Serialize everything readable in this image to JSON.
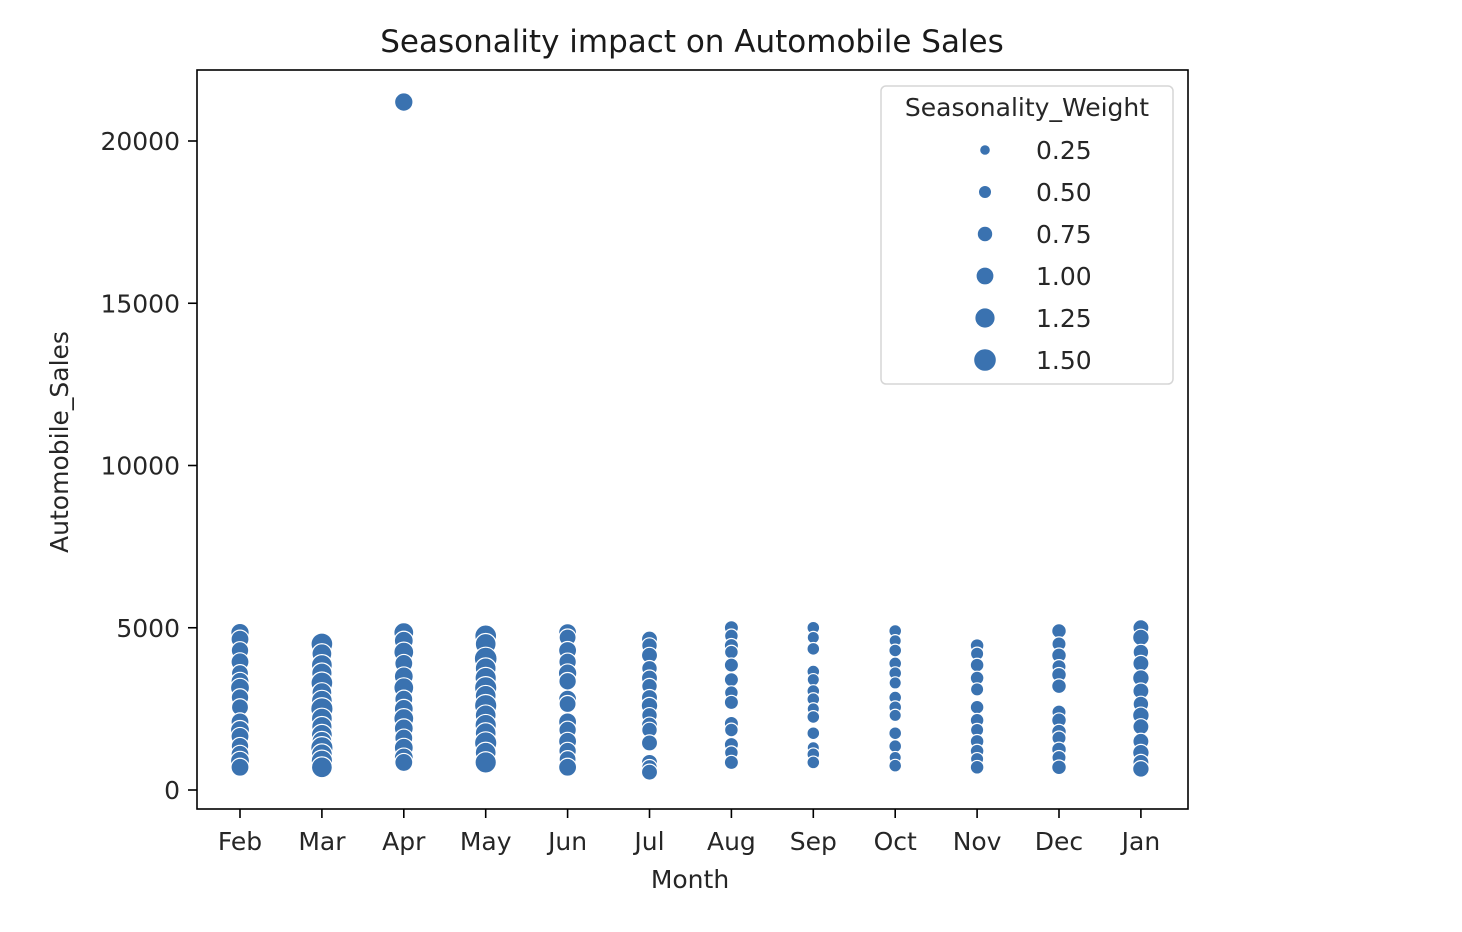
{
  "chart_data": {
    "type": "scatter",
    "title": "Seasonality impact on Automobile Sales",
    "xlabel": "Month",
    "ylabel": "Automobile_Sales",
    "categories": [
      "Feb",
      "Mar",
      "Apr",
      "May",
      "Jun",
      "Jul",
      "Aug",
      "Sep",
      "Oct",
      "Nov",
      "Dec",
      "Jan"
    ],
    "ylim": [
      -600,
      22000
    ],
    "yticks": [
      0,
      5000,
      10000,
      15000,
      20000
    ],
    "grid": false,
    "point_color": "#3a72b0",
    "size_variable": "Seasonality_Weight",
    "legend": {
      "title": "Seasonality_Weight",
      "placement": "top-right",
      "entries": [
        {
          "label": "0.25",
          "value": 0.25
        },
        {
          "label": "0.50",
          "value": 0.5
        },
        {
          "label": "0.75",
          "value": 0.75
        },
        {
          "label": "1.00",
          "value": 1.0
        },
        {
          "label": "1.25",
          "value": 1.25
        },
        {
          "label": "1.50",
          "value": 1.5
        }
      ]
    },
    "points": [
      {
        "x": "Feb",
        "y": 4850,
        "w": 1.05
      },
      {
        "x": "Feb",
        "y": 4650,
        "w": 1.0
      },
      {
        "x": "Feb",
        "y": 4300,
        "w": 0.95
      },
      {
        "x": "Feb",
        "y": 3950,
        "w": 1.0
      },
      {
        "x": "Feb",
        "y": 3600,
        "w": 0.9
      },
      {
        "x": "Feb",
        "y": 3350,
        "w": 1.0
      },
      {
        "x": "Feb",
        "y": 3150,
        "w": 1.1
      },
      {
        "x": "Feb",
        "y": 2850,
        "w": 0.95
      },
      {
        "x": "Feb",
        "y": 2550,
        "w": 0.9
      },
      {
        "x": "Feb",
        "y": 2100,
        "w": 1.0
      },
      {
        "x": "Feb",
        "y": 1850,
        "w": 1.1
      },
      {
        "x": "Feb",
        "y": 1650,
        "w": 1.0
      },
      {
        "x": "Feb",
        "y": 1350,
        "w": 0.95
      },
      {
        "x": "Feb",
        "y": 1100,
        "w": 1.0
      },
      {
        "x": "Feb",
        "y": 900,
        "w": 1.1
      },
      {
        "x": "Feb",
        "y": 700,
        "w": 1.0
      },
      {
        "x": "Mar",
        "y": 4500,
        "w": 1.4
      },
      {
        "x": "Mar",
        "y": 4200,
        "w": 1.2
      },
      {
        "x": "Mar",
        "y": 3850,
        "w": 1.3
      },
      {
        "x": "Mar",
        "y": 3600,
        "w": 1.25
      },
      {
        "x": "Mar",
        "y": 3300,
        "w": 1.4
      },
      {
        "x": "Mar",
        "y": 3000,
        "w": 1.2
      },
      {
        "x": "Mar",
        "y": 2750,
        "w": 1.3
      },
      {
        "x": "Mar",
        "y": 2500,
        "w": 1.45
      },
      {
        "x": "Mar",
        "y": 2200,
        "w": 1.3
      },
      {
        "x": "Mar",
        "y": 1950,
        "w": 1.25
      },
      {
        "x": "Mar",
        "y": 1700,
        "w": 1.3
      },
      {
        "x": "Mar",
        "y": 1500,
        "w": 1.2
      },
      {
        "x": "Mar",
        "y": 1300,
        "w": 1.45
      },
      {
        "x": "Mar",
        "y": 1100,
        "w": 1.3
      },
      {
        "x": "Mar",
        "y": 900,
        "w": 1.35
      },
      {
        "x": "Mar",
        "y": 700,
        "w": 1.3
      },
      {
        "x": "Apr",
        "y": 21200,
        "w": 1.05
      },
      {
        "x": "Apr",
        "y": 4850,
        "w": 1.2
      },
      {
        "x": "Apr",
        "y": 4600,
        "w": 1.1
      },
      {
        "x": "Apr",
        "y": 4250,
        "w": 1.2
      },
      {
        "x": "Apr",
        "y": 3900,
        "w": 1.0
      },
      {
        "x": "Apr",
        "y": 3500,
        "w": 1.1
      },
      {
        "x": "Apr",
        "y": 3150,
        "w": 1.2
      },
      {
        "x": "Apr",
        "y": 2800,
        "w": 1.0
      },
      {
        "x": "Apr",
        "y": 2500,
        "w": 1.1
      },
      {
        "x": "Apr",
        "y": 2200,
        "w": 1.2
      },
      {
        "x": "Apr",
        "y": 1900,
        "w": 1.1
      },
      {
        "x": "Apr",
        "y": 1600,
        "w": 1.0
      },
      {
        "x": "Apr",
        "y": 1300,
        "w": 1.1
      },
      {
        "x": "Apr",
        "y": 1000,
        "w": 1.1
      },
      {
        "x": "Apr",
        "y": 850,
        "w": 1.0
      },
      {
        "x": "May",
        "y": 4750,
        "w": 1.4
      },
      {
        "x": "May",
        "y": 4500,
        "w": 1.3
      },
      {
        "x": "May",
        "y": 4050,
        "w": 1.5
      },
      {
        "x": "May",
        "y": 3750,
        "w": 1.3
      },
      {
        "x": "May",
        "y": 3450,
        "w": 1.35
      },
      {
        "x": "May",
        "y": 3150,
        "w": 1.45
      },
      {
        "x": "May",
        "y": 2900,
        "w": 1.3
      },
      {
        "x": "May",
        "y": 2600,
        "w": 1.45
      },
      {
        "x": "May",
        "y": 2300,
        "w": 1.3
      },
      {
        "x": "May",
        "y": 2000,
        "w": 1.35
      },
      {
        "x": "May",
        "y": 1750,
        "w": 1.3
      },
      {
        "x": "May",
        "y": 1450,
        "w": 1.45
      },
      {
        "x": "May",
        "y": 1150,
        "w": 1.3
      },
      {
        "x": "May",
        "y": 850,
        "w": 1.35
      },
      {
        "x": "Jun",
        "y": 4850,
        "w": 1.0
      },
      {
        "x": "Jun",
        "y": 4700,
        "w": 0.9
      },
      {
        "x": "Jun",
        "y": 4300,
        "w": 1.0
      },
      {
        "x": "Jun",
        "y": 3950,
        "w": 0.95
      },
      {
        "x": "Jun",
        "y": 3600,
        "w": 1.05
      },
      {
        "x": "Jun",
        "y": 3350,
        "w": 0.95
      },
      {
        "x": "Jun",
        "y": 2800,
        "w": 1.0
      },
      {
        "x": "Jun",
        "y": 2650,
        "w": 0.9
      },
      {
        "x": "Jun",
        "y": 2100,
        "w": 1.0
      },
      {
        "x": "Jun",
        "y": 1850,
        "w": 0.95
      },
      {
        "x": "Jun",
        "y": 1500,
        "w": 1.0
      },
      {
        "x": "Jun",
        "y": 1200,
        "w": 0.95
      },
      {
        "x": "Jun",
        "y": 950,
        "w": 0.9
      },
      {
        "x": "Jun",
        "y": 700,
        "w": 1.0
      },
      {
        "x": "Jul",
        "y": 4650,
        "w": 0.8
      },
      {
        "x": "Jul",
        "y": 4450,
        "w": 0.75
      },
      {
        "x": "Jul",
        "y": 4150,
        "w": 0.8
      },
      {
        "x": "Jul",
        "y": 3750,
        "w": 0.75
      },
      {
        "x": "Jul",
        "y": 3450,
        "w": 0.8
      },
      {
        "x": "Jul",
        "y": 3200,
        "w": 0.75
      },
      {
        "x": "Jul",
        "y": 2850,
        "w": 0.8
      },
      {
        "x": "Jul",
        "y": 2600,
        "w": 0.85
      },
      {
        "x": "Jul",
        "y": 2300,
        "w": 0.75
      },
      {
        "x": "Jul",
        "y": 2000,
        "w": 0.8
      },
      {
        "x": "Jul",
        "y": 1850,
        "w": 0.75
      },
      {
        "x": "Jul",
        "y": 1450,
        "w": 0.8
      },
      {
        "x": "Jul",
        "y": 850,
        "w": 0.8
      },
      {
        "x": "Jul",
        "y": 700,
        "w": 0.75
      },
      {
        "x": "Jul",
        "y": 550,
        "w": 0.8
      },
      {
        "x": "Aug",
        "y": 5000,
        "w": 0.6
      },
      {
        "x": "Aug",
        "y": 4750,
        "w": 0.55
      },
      {
        "x": "Aug",
        "y": 4450,
        "w": 0.6
      },
      {
        "x": "Aug",
        "y": 4250,
        "w": 0.55
      },
      {
        "x": "Aug",
        "y": 3850,
        "w": 0.6
      },
      {
        "x": "Aug",
        "y": 3400,
        "w": 0.6
      },
      {
        "x": "Aug",
        "y": 3000,
        "w": 0.55
      },
      {
        "x": "Aug",
        "y": 2700,
        "w": 0.6
      },
      {
        "x": "Aug",
        "y": 2050,
        "w": 0.6
      },
      {
        "x": "Aug",
        "y": 1850,
        "w": 0.55
      },
      {
        "x": "Aug",
        "y": 1400,
        "w": 0.6
      },
      {
        "x": "Aug",
        "y": 1150,
        "w": 0.55
      },
      {
        "x": "Aug",
        "y": 850,
        "w": 0.6
      },
      {
        "x": "Sep",
        "y": 5000,
        "w": 0.45
      },
      {
        "x": "Sep",
        "y": 4700,
        "w": 0.4
      },
      {
        "x": "Sep",
        "y": 4350,
        "w": 0.45
      },
      {
        "x": "Sep",
        "y": 3650,
        "w": 0.45
      },
      {
        "x": "Sep",
        "y": 3400,
        "w": 0.4
      },
      {
        "x": "Sep",
        "y": 3050,
        "w": 0.45
      },
      {
        "x": "Sep",
        "y": 2800,
        "w": 0.45
      },
      {
        "x": "Sep",
        "y": 2500,
        "w": 0.4
      },
      {
        "x": "Sep",
        "y": 2250,
        "w": 0.45
      },
      {
        "x": "Sep",
        "y": 1750,
        "w": 0.45
      },
      {
        "x": "Sep",
        "y": 1300,
        "w": 0.4
      },
      {
        "x": "Sep",
        "y": 1100,
        "w": 0.45
      },
      {
        "x": "Sep",
        "y": 850,
        "w": 0.45
      },
      {
        "x": "Oct",
        "y": 4900,
        "w": 0.45
      },
      {
        "x": "Oct",
        "y": 4600,
        "w": 0.4
      },
      {
        "x": "Oct",
        "y": 4300,
        "w": 0.45
      },
      {
        "x": "Oct",
        "y": 3900,
        "w": 0.45
      },
      {
        "x": "Oct",
        "y": 3600,
        "w": 0.45
      },
      {
        "x": "Oct",
        "y": 3300,
        "w": 0.4
      },
      {
        "x": "Oct",
        "y": 2850,
        "w": 0.45
      },
      {
        "x": "Oct",
        "y": 2550,
        "w": 0.45
      },
      {
        "x": "Oct",
        "y": 2300,
        "w": 0.4
      },
      {
        "x": "Oct",
        "y": 1750,
        "w": 0.45
      },
      {
        "x": "Oct",
        "y": 1350,
        "w": 0.45
      },
      {
        "x": "Oct",
        "y": 1000,
        "w": 0.4
      },
      {
        "x": "Oct",
        "y": 750,
        "w": 0.45
      },
      {
        "x": "Nov",
        "y": 4450,
        "w": 0.55
      },
      {
        "x": "Nov",
        "y": 4200,
        "w": 0.5
      },
      {
        "x": "Nov",
        "y": 3850,
        "w": 0.55
      },
      {
        "x": "Nov",
        "y": 3450,
        "w": 0.55
      },
      {
        "x": "Nov",
        "y": 3100,
        "w": 0.5
      },
      {
        "x": "Nov",
        "y": 2550,
        "w": 0.55
      },
      {
        "x": "Nov",
        "y": 2150,
        "w": 0.55
      },
      {
        "x": "Nov",
        "y": 1850,
        "w": 0.5
      },
      {
        "x": "Nov",
        "y": 1500,
        "w": 0.55
      },
      {
        "x": "Nov",
        "y": 1200,
        "w": 0.55
      },
      {
        "x": "Nov",
        "y": 950,
        "w": 0.5
      },
      {
        "x": "Nov",
        "y": 700,
        "w": 0.55
      },
      {
        "x": "Dec",
        "y": 4900,
        "w": 0.65
      },
      {
        "x": "Dec",
        "y": 4500,
        "w": 0.6
      },
      {
        "x": "Dec",
        "y": 4150,
        "w": 0.65
      },
      {
        "x": "Dec",
        "y": 3800,
        "w": 0.6
      },
      {
        "x": "Dec",
        "y": 3550,
        "w": 0.65
      },
      {
        "x": "Dec",
        "y": 3200,
        "w": 0.65
      },
      {
        "x": "Dec",
        "y": 2400,
        "w": 0.6
      },
      {
        "x": "Dec",
        "y": 2150,
        "w": 0.65
      },
      {
        "x": "Dec",
        "y": 1800,
        "w": 0.65
      },
      {
        "x": "Dec",
        "y": 1600,
        "w": 0.6
      },
      {
        "x": "Dec",
        "y": 1250,
        "w": 0.65
      },
      {
        "x": "Dec",
        "y": 1000,
        "w": 0.6
      },
      {
        "x": "Dec",
        "y": 700,
        "w": 0.65
      },
      {
        "x": "Jan",
        "y": 5000,
        "w": 0.8
      },
      {
        "x": "Jan",
        "y": 4700,
        "w": 0.85
      },
      {
        "x": "Jan",
        "y": 4250,
        "w": 0.75
      },
      {
        "x": "Jan",
        "y": 3900,
        "w": 0.8
      },
      {
        "x": "Jan",
        "y": 3450,
        "w": 0.85
      },
      {
        "x": "Jan",
        "y": 3050,
        "w": 0.8
      },
      {
        "x": "Jan",
        "y": 2650,
        "w": 0.75
      },
      {
        "x": "Jan",
        "y": 2300,
        "w": 0.85
      },
      {
        "x": "Jan",
        "y": 1950,
        "w": 0.8
      },
      {
        "x": "Jan",
        "y": 1500,
        "w": 0.8
      },
      {
        "x": "Jan",
        "y": 1150,
        "w": 0.85
      },
      {
        "x": "Jan",
        "y": 850,
        "w": 0.8
      },
      {
        "x": "Jan",
        "y": 650,
        "w": 0.85
      }
    ]
  }
}
